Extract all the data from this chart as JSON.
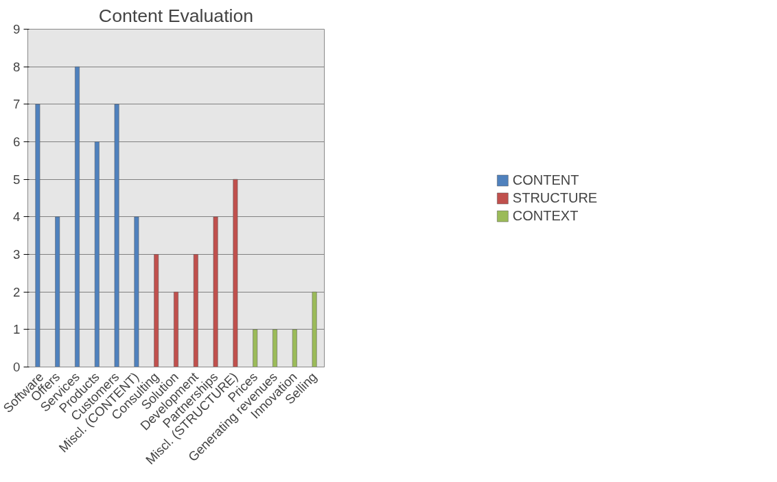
{
  "chart_data": {
    "type": "bar",
    "title": "Content Evaluation",
    "categories": [
      "Software",
      "Offers",
      "Services",
      "Products",
      "Customers",
      "Miscl. (CONTENT)",
      "Consulting",
      "Solution",
      "Development",
      "Partnerships",
      "Miscl. (STRUCTURE)",
      "Prices",
      "Generating revenues",
      "Innovation",
      "Selling"
    ],
    "series": [
      {
        "name": "CONTENT",
        "color": "#4f81bd",
        "values": [
          7,
          4,
          8,
          6,
          7,
          4,
          null,
          null,
          null,
          null,
          null,
          null,
          null,
          null,
          null
        ]
      },
      {
        "name": "STRUCTURE",
        "color": "#c0504d",
        "values": [
          null,
          null,
          null,
          null,
          null,
          null,
          3,
          2,
          3,
          4,
          5,
          null,
          null,
          null,
          null
        ]
      },
      {
        "name": "CONTEXT",
        "color": "#9bbb59",
        "values": [
          null,
          null,
          null,
          null,
          null,
          null,
          null,
          null,
          null,
          null,
          null,
          1,
          1,
          1,
          2
        ]
      }
    ],
    "ylim": [
      0,
      9
    ],
    "yticks": [
      0,
      1,
      2,
      3,
      4,
      5,
      6,
      7,
      8,
      9
    ],
    "grid": "y",
    "legend": "right"
  }
}
